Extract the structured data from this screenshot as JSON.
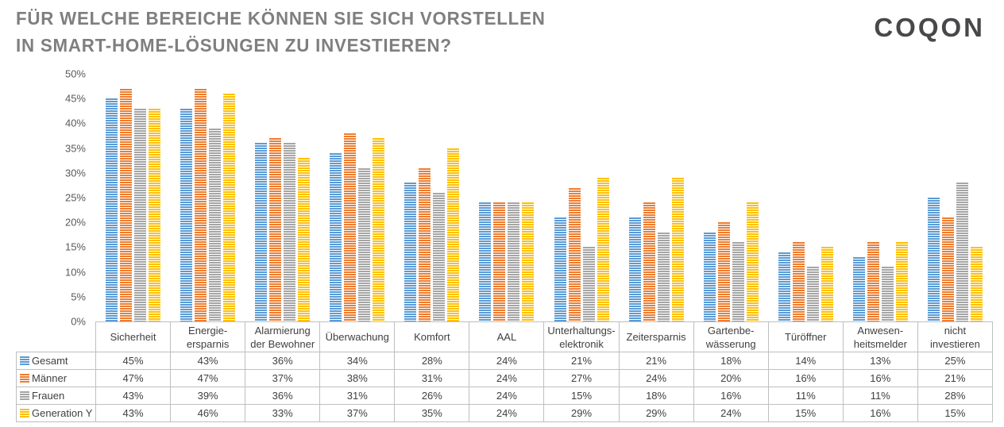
{
  "header": {
    "title_line1": "FÜR WELCHE BEREICHE KÖNNEN SIE SICH VORSTELLEN",
    "title_line2": "IN SMART-HOME-LÖSUNGEN ZU INVESTIEREN?",
    "logo_text": "COQON"
  },
  "chart_data": {
    "type": "bar",
    "title": "Für welche Bereiche können Sie sich vorstellen in Smart-Home-Lösungen zu investieren?",
    "categories": [
      "Sicherheit",
      "Energie-\nersparnis",
      "Alarmierung\nder Bewohner",
      "Überwachung",
      "Komfort",
      "AAL",
      "Unterhaltungs-\nelektronik",
      "Zeitersparnis",
      "Gartenbe-\nwässerung",
      "Türöffner",
      "Anwesen-\nheitsmelder",
      "nicht\ninvestieren"
    ],
    "series": [
      {
        "name": "Gesamt",
        "color": "#5B9BD5",
        "values": [
          45,
          43,
          36,
          34,
          28,
          24,
          21,
          21,
          18,
          14,
          13,
          25
        ]
      },
      {
        "name": "Männer",
        "color": "#ED7D31",
        "values": [
          47,
          47,
          37,
          38,
          31,
          24,
          27,
          24,
          20,
          16,
          16,
          21
        ]
      },
      {
        "name": "Frauen",
        "color": "#A5A5A5",
        "values": [
          43,
          39,
          36,
          31,
          26,
          24,
          15,
          18,
          16,
          11,
          11,
          28
        ]
      },
      {
        "name": "Generation Y",
        "color": "#FFC000",
        "values": [
          43,
          46,
          33,
          37,
          35,
          24,
          29,
          29,
          24,
          15,
          16,
          15
        ]
      }
    ],
    "ylim": [
      0,
      50
    ],
    "ytick_step": 5,
    "yticks": [
      "0%",
      "5%",
      "10%",
      "15%",
      "20%",
      "25%",
      "30%",
      "35%",
      "40%",
      "45%",
      "50%"
    ],
    "value_suffix": "%",
    "bar_pattern": "light-horizontal-stripes",
    "grid": false,
    "legend_position": "table-row-headers",
    "table_shown": true
  }
}
